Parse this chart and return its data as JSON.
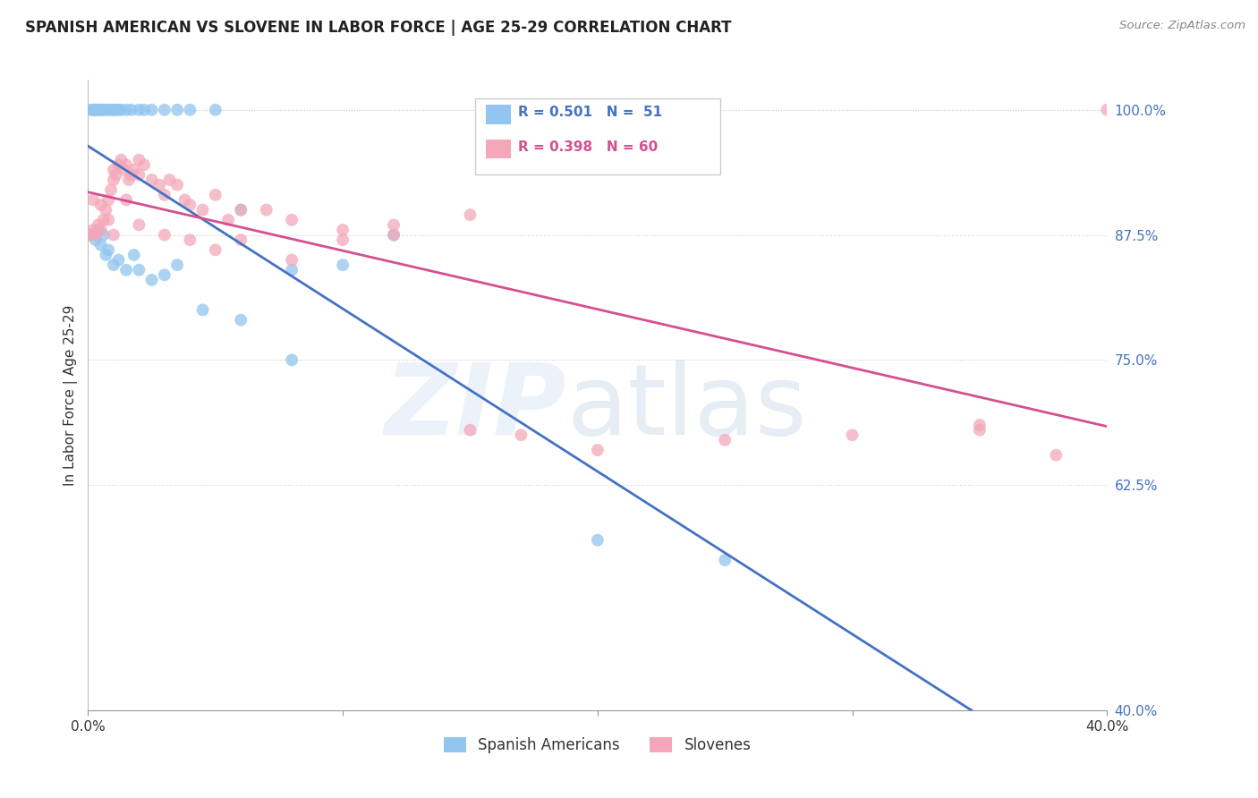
{
  "title": "SPANISH AMERICAN VS SLOVENE IN LABOR FORCE | AGE 25-29 CORRELATION CHART",
  "source": "Source: ZipAtlas.com",
  "ylabel": "In Labor Force | Age 25-29",
  "xlim": [
    0.0,
    40.0
  ],
  "ylim": [
    40.0,
    103.0
  ],
  "yticks": [
    40.0,
    62.5,
    75.0,
    87.5,
    100.0
  ],
  "ytick_labels": [
    "40.0%",
    "62.5%",
    "75.0%",
    "87.5%",
    "100.0%"
  ],
  "blue_color": "#92C5F0",
  "pink_color": "#F4A7B9",
  "blue_line_color": "#4472C4",
  "pink_line_color": "#D45090",
  "legend1_r": "0.501",
  "legend1_n": "51",
  "legend2_r": "0.398",
  "legend2_n": "60",
  "spanish_x": [
    0.1,
    0.2,
    0.2,
    0.3,
    0.3,
    0.4,
    0.5,
    0.5,
    0.6,
    0.7,
    0.8,
    0.9,
    1.0,
    1.0,
    1.1,
    1.2,
    1.3,
    1.5,
    1.7,
    2.0,
    2.2,
    2.5,
    3.0,
    3.5,
    4.0,
    5.0,
    6.0,
    8.0,
    10.0,
    12.0,
    0.1,
    0.2,
    0.3,
    0.4,
    0.5,
    0.6,
    0.7,
    0.8,
    1.0,
    1.2,
    1.5,
    1.8,
    2.0,
    2.5,
    3.0,
    3.5,
    4.5,
    6.0,
    8.0,
    20.0,
    25.0
  ],
  "spanish_y": [
    100.0,
    100.0,
    100.0,
    100.0,
    100.0,
    100.0,
    100.0,
    100.0,
    100.0,
    100.0,
    100.0,
    100.0,
    100.0,
    100.0,
    100.0,
    100.0,
    100.0,
    100.0,
    100.0,
    100.0,
    100.0,
    100.0,
    100.0,
    100.0,
    100.0,
    100.0,
    90.0,
    84.0,
    84.5,
    87.5,
    87.5,
    87.5,
    87.0,
    88.0,
    86.5,
    87.5,
    85.5,
    86.0,
    84.5,
    85.0,
    84.0,
    85.5,
    84.0,
    83.0,
    83.5,
    84.5,
    80.0,
    79.0,
    75.0,
    57.0,
    55.0
  ],
  "slovene_x": [
    0.1,
    0.2,
    0.3,
    0.4,
    0.5,
    0.6,
    0.7,
    0.8,
    0.9,
    1.0,
    1.0,
    1.1,
    1.2,
    1.3,
    1.4,
    1.5,
    1.6,
    1.7,
    1.8,
    2.0,
    2.0,
    2.2,
    2.5,
    2.8,
    3.0,
    3.2,
    3.5,
    3.8,
    4.0,
    4.5,
    5.0,
    5.5,
    6.0,
    7.0,
    8.0,
    10.0,
    12.0,
    15.0,
    0.2,
    0.5,
    0.8,
    1.0,
    1.5,
    2.0,
    3.0,
    4.0,
    5.0,
    6.0,
    8.0,
    10.0,
    12.0,
    15.0,
    17.0,
    20.0,
    25.0,
    30.0,
    35.0,
    38.0,
    40.0,
    35.0
  ],
  "slovene_y": [
    87.5,
    88.0,
    87.5,
    88.5,
    88.0,
    89.0,
    90.0,
    91.0,
    92.0,
    93.0,
    94.0,
    93.5,
    94.5,
    95.0,
    94.0,
    94.5,
    93.0,
    93.5,
    94.0,
    93.5,
    95.0,
    94.5,
    93.0,
    92.5,
    91.5,
    93.0,
    92.5,
    91.0,
    90.5,
    90.0,
    91.5,
    89.0,
    90.0,
    90.0,
    89.0,
    88.0,
    88.5,
    89.5,
    91.0,
    90.5,
    89.0,
    87.5,
    91.0,
    88.5,
    87.5,
    87.0,
    86.0,
    87.0,
    85.0,
    87.0,
    87.5,
    68.0,
    67.5,
    66.0,
    67.0,
    67.5,
    68.5,
    65.5,
    100.0,
    68.0
  ]
}
